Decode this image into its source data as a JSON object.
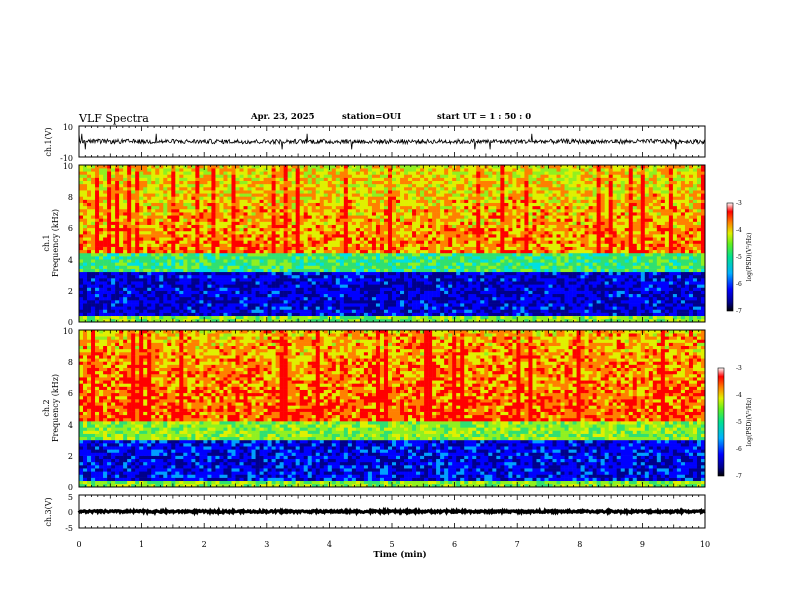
{
  "header": {
    "title": "VLF Spectra",
    "date": "Apr. 23, 2025",
    "station": "station=OUI",
    "start": "start  UT =   1 : 50 : 0"
  },
  "chart_data": [
    {
      "type": "line",
      "panel": "waveform-ch1",
      "ylabel": "ch.1(V)",
      "ylim": [
        -10,
        10
      ],
      "ytick_labels": [
        "10",
        "-10"
      ],
      "xlim": [
        0,
        10
      ],
      "description_values": {
        "baseline": 0,
        "typical_amplitude": 1.5,
        "spike_max_abs": 5
      }
    },
    {
      "type": "heatmap",
      "panel": "spectrogram-ch1",
      "ylabel": "ch.1 Frequency (kHz)",
      "ylim": [
        0,
        10
      ],
      "ytick_labels": [
        "0",
        "2",
        "4",
        "6",
        "8",
        "10"
      ],
      "xlim": [
        0,
        10
      ],
      "log_psd_range": [
        -7,
        -3
      ],
      "colorbar_label": "log(PSD)(V²/Hz)",
      "colorbar_ticks": [
        "-3",
        "-4",
        "-5",
        "-6",
        "-7"
      ],
      "profile": {
        "low_band_khz": [
          0,
          3.2
        ],
        "low_band_level": -6.5,
        "mid_band_level": -5.0,
        "high_band_level": -3.8
      }
    },
    {
      "type": "heatmap",
      "panel": "spectrogram-ch2",
      "ylabel": "ch.2 Frequency (kHz)",
      "ylim": [
        0,
        10
      ],
      "ytick_labels": [
        "0",
        "2",
        "4",
        "6",
        "8",
        "10"
      ],
      "xlim": [
        0,
        10
      ],
      "log_psd_range": [
        -7,
        -3
      ],
      "colorbar_label": "log(PSD)(V²/Hz)",
      "colorbar_ticks": [
        "-3",
        "-4",
        "-5",
        "-6",
        "-7"
      ],
      "profile": {
        "low_band_khz": [
          0,
          3.0
        ],
        "low_band_level": -6.4,
        "mid_band_level": -4.6,
        "high_band_level": -3.6
      }
    },
    {
      "type": "line",
      "panel": "waveform-ch3",
      "ylabel": "ch.3(V)",
      "ylim": [
        -5,
        5
      ],
      "ytick_labels": [
        "5",
        "0",
        "-5"
      ],
      "xlim": [
        0,
        10
      ],
      "description_values": {
        "baseline": 0,
        "typical_amplitude": 0.3
      }
    }
  ],
  "xaxis": {
    "label": "Time  (min)",
    "ticks": [
      "0",
      "1",
      "2",
      "3",
      "4",
      "5",
      "6",
      "7",
      "8",
      "9",
      "10"
    ]
  },
  "colors": {
    "colormap": [
      "#00008b",
      "#0000ff",
      "#00a0ff",
      "#00e0e0",
      "#30e070",
      "#90f020",
      "#e0f000",
      "#ff8000",
      "#ff0000"
    ]
  }
}
